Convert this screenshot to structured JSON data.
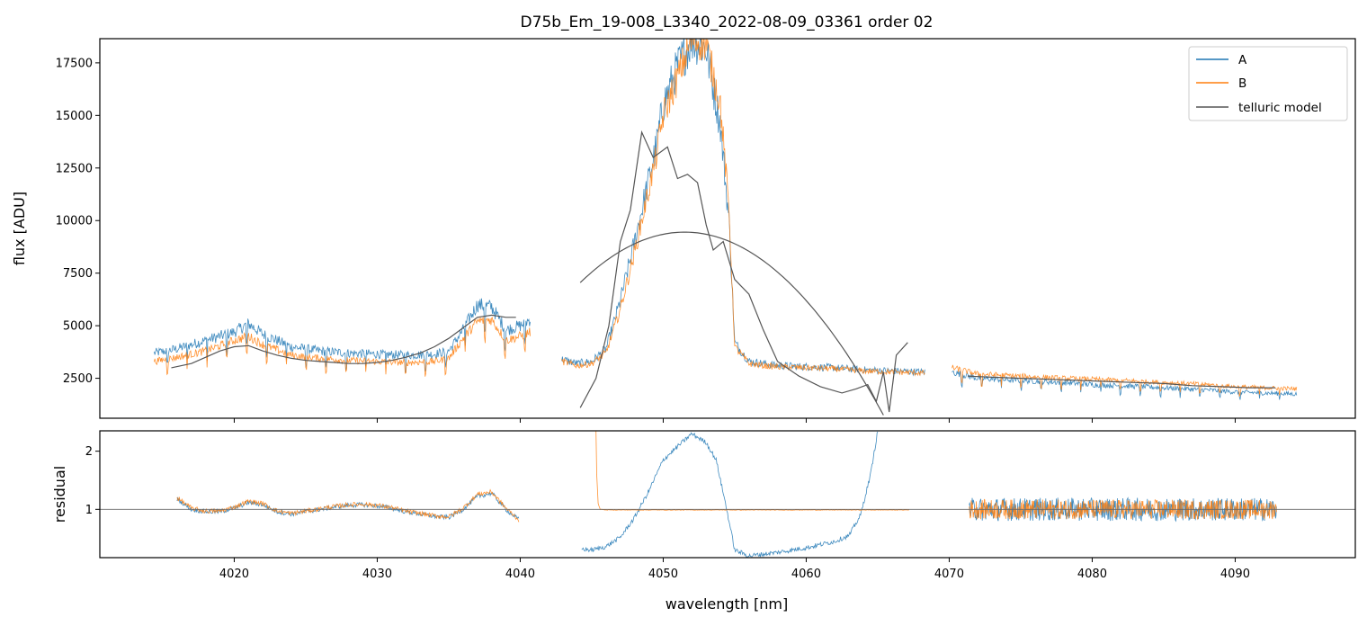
{
  "chart_data": {
    "type": "line",
    "title": "D75b_Em_19-008_L3340_2022-08-09_03361  order 02",
    "xlabel": "wavelength [nm]",
    "xlim": [
      4010.6,
      4098.4
    ],
    "xticks": [
      4020,
      4030,
      4040,
      4050,
      4060,
      4070,
      4080,
      4090
    ],
    "colors": {
      "A": "#1f77b4",
      "B": "#ff7f0e",
      "telluric": "#555555",
      "unity": "#666666"
    },
    "top_panel": {
      "ylabel": "flux [ADU]",
      "ylim": [
        600,
        18650
      ],
      "yticks": [
        2500,
        5000,
        7500,
        10000,
        12500,
        15000,
        17500
      ],
      "legend": {
        "position": "upper-right",
        "entries": [
          "A",
          "B",
          "telluric model"
        ]
      },
      "series": [
        {
          "name": "A",
          "segments": [
            {
              "x": [
                4014.4,
                4016,
                4018,
                4020,
                4021,
                4022,
                4024,
                4026,
                4028,
                4030,
                4032,
                4034,
                4035,
                4036,
                4037,
                4038,
                4039,
                4040,
                4040.7
              ],
              "y": [
                3700,
                3900,
                4300,
                4700,
                5100,
                4600,
                4000,
                3800,
                3700,
                3650,
                3600,
                3650,
                3800,
                4800,
                6000,
                5900,
                4800,
                5000,
                5300
              ]
            },
            {
              "x": [
                4042.9,
                4044,
                4045,
                4046,
                4047,
                4048,
                4049,
                4049.5,
                4050,
                4051,
                4052,
                4053,
                4054,
                4054.6,
                4055,
                4056,
                4057,
                4058,
                4060,
                4062,
                4064,
                4066,
                4068.3
              ],
              "y": [
                3400,
                3200,
                3300,
                3900,
                6200,
                9000,
                12000,
                13500,
                15500,
                17300,
                18600,
                18200,
                14500,
                10000,
                4200,
                3300,
                3200,
                3100,
                3050,
                3000,
                2900,
                2850,
                2800
              ]
            },
            {
              "x": [
                4070.2,
                4072,
                4075,
                4078,
                4080,
                4082,
                4085,
                4088,
                4090,
                4092,
                4094.3
              ],
              "y": [
                2800,
                2500,
                2400,
                2300,
                2200,
                2150,
                2050,
                1950,
                1850,
                1800,
                1750
              ]
            }
          ]
        },
        {
          "name": "B",
          "segments": [
            {
              "x": [
                4014.4,
                4016,
                4018,
                4020,
                4021,
                4022,
                4024,
                4026,
                4028,
                4030,
                4032,
                4034,
                4035,
                4036,
                4037,
                4038,
                4039,
                4040,
                4040.7
              ],
              "y": [
                3300,
                3500,
                3800,
                4300,
                4500,
                4100,
                3600,
                3450,
                3350,
                3300,
                3250,
                3300,
                3450,
                4400,
                5200,
                5300,
                4300,
                4500,
                4700
              ]
            },
            {
              "x": [
                4042.9,
                4044,
                4045,
                4046,
                4047,
                4048,
                4049,
                4049.5,
                4050,
                4051,
                4052,
                4053,
                4054,
                4054.6,
                4055,
                4056,
                4057,
                4058,
                4060,
                4062,
                4064,
                4066,
                4068.3
              ],
              "y": [
                3300,
                3100,
                3200,
                3700,
                5800,
                8500,
                11500,
                13000,
                15000,
                16800,
                18600,
                18400,
                15500,
                10500,
                4000,
                3200,
                3100,
                3050,
                3000,
                2950,
                2850,
                2800,
                2750
              ]
            },
            {
              "x": [
                4070.2,
                4072,
                4075,
                4078,
                4080,
                4082,
                4085,
                4088,
                4090,
                4092,
                4094.3
              ],
              "y": [
                3000,
                2700,
                2600,
                2500,
                2450,
                2400,
                2300,
                2200,
                2100,
                2050,
                2000
              ]
            }
          ]
        },
        {
          "name": "telluric model",
          "segments": [
            {
              "x": [
                4015.6,
                4017,
                4018,
                4019,
                4020,
                4021,
                4022,
                4023,
                4024,
                4025,
                4026,
                4027,
                4028,
                4029,
                4030,
                4031,
                4032,
                4033,
                4034,
                4035,
                4036,
                4037,
                4038,
                4039,
                4039.7
              ],
              "y": [
                3000,
                3200,
                3500,
                3800,
                4000,
                4050,
                3800,
                3600,
                3450,
                3350,
                3300,
                3250,
                3200,
                3200,
                3250,
                3350,
                3500,
                3700,
                4000,
                4400,
                4900,
                5400,
                5500,
                5400,
                5400
              ]
            },
            {
              "x": [
                4044.2,
                4045.3,
                4046.2,
                4047,
                4047.7,
                4048.5,
                4049.3,
                4050.3,
                4051,
                4051.7,
                4052.4,
                4053,
                4053.5,
                4054.2,
                4055,
                4056,
                4057,
                4058,
                4059.5,
                4061,
                4062.5,
                4063.5,
                4064.3,
                4064.9,
                4065.4,
                4065.8,
                4066.3,
                4067.1
              ],
              "y": [
                1100,
                2500,
                5000,
                9000,
                10500,
                14200,
                13000,
                13500,
                12000,
                12200,
                11800,
                9800,
                8600,
                9000,
                7200,
                6500,
                4800,
                3300,
                2600,
                2100,
                1800,
                2000,
                2200,
                1400,
                2800,
                900,
                3600,
                4200
              ]
            },
            {
              "x": [
                4071.3,
                4073,
                4075,
                4077,
                4079,
                4081,
                4083,
                4085,
                4087,
                4089,
                4091,
                4092.8
              ],
              "y": [
                2600,
                2550,
                2500,
                2450,
                2400,
                2350,
                2300,
                2250,
                2150,
                2100,
                2050,
                2050
              ]
            }
          ],
          "smooth_fit": {
            "x_range": [
              4044.2,
              4065.5
            ],
            "peak_x": 4051.5,
            "peak_y": 9450,
            "start_y": 7050,
            "end_y": 0
          }
        }
      ]
    },
    "bottom_panel": {
      "ylabel": "residual",
      "ylim": [
        0.17,
        2.35
      ],
      "yticks": [
        1,
        2
      ],
      "reference_line": 1,
      "series": [
        {
          "name": "A",
          "segments": [
            {
              "x": [
                4016,
                4017,
                4018,
                4019,
                4020,
                4021,
                4022,
                4023,
                4024,
                4025,
                4026,
                4027,
                4028,
                4029,
                4030,
                4031,
                4032,
                4033,
                4034,
                4035,
                4036,
                4037,
                4038,
                4039,
                4039.9
              ],
              "y": [
                1.18,
                1.0,
                0.96,
                0.96,
                1.02,
                1.12,
                1.08,
                0.96,
                0.92,
                0.96,
                1.0,
                1.04,
                1.07,
                1.08,
                1.06,
                1.02,
                0.96,
                0.92,
                0.88,
                0.86,
                1.0,
                1.22,
                1.28,
                1.0,
                0.82
              ]
            },
            {
              "x": [
                4044.3,
                4045,
                4046,
                4047,
                4048,
                4049,
                4050,
                4051,
                4052,
                4053,
                4053.7,
                4054.4,
                4055,
                4056,
                4058,
                4060,
                4062,
                4063,
                4063.8,
                4064.5,
                4065
              ],
              "y": [
                0.32,
                0.3,
                0.36,
                0.52,
                0.86,
                1.32,
                1.85,
                2.08,
                2.3,
                2.15,
                1.85,
                1.05,
                0.3,
                0.2,
                0.26,
                0.34,
                0.45,
                0.55,
                0.9,
                1.6,
                2.35
              ]
            },
            {
              "x": [
                4071.4,
                4074,
                4077,
                4080,
                4083,
                4086,
                4089,
                4092.9
              ],
              "y": [
                1.0,
                1.0,
                1.0,
                1.0,
                1.0,
                1.0,
                1.0,
                1.0
              ]
            }
          ]
        },
        {
          "name": "B",
          "segments": [
            {
              "x": [
                4016,
                4017,
                4018,
                4019,
                4020,
                4021,
                4022,
                4023,
                4024,
                4025,
                4026,
                4027,
                4028,
                4029,
                4030,
                4031,
                4032,
                4033,
                4034,
                4035,
                4036,
                4037,
                4038,
                4039,
                4039.9
              ],
              "y": [
                1.2,
                1.02,
                0.97,
                0.97,
                1.04,
                1.14,
                1.1,
                0.97,
                0.93,
                0.97,
                1.01,
                1.05,
                1.08,
                1.09,
                1.07,
                1.03,
                0.97,
                0.93,
                0.89,
                0.87,
                1.02,
                1.26,
                1.3,
                1.02,
                0.82
              ]
            },
            {
              "x": [
                4045.3,
                4045.35,
                4045.45,
                4045.6,
                4046,
                4050,
                4055,
                4060,
                4065,
                4067.2
              ],
              "y": [
                2.35,
                1.6,
                1.1,
                1.0,
                0.99,
                0.99,
                0.99,
                0.99,
                0.99,
                0.99
              ]
            },
            {
              "x": [
                4071.4,
                4074,
                4077,
                4080,
                4083,
                4086,
                4089,
                4092.9
              ],
              "y": [
                1.0,
                1.0,
                1.0,
                1.0,
                1.0,
                1.0,
                1.0,
                1.0
              ]
            }
          ]
        }
      ]
    }
  }
}
